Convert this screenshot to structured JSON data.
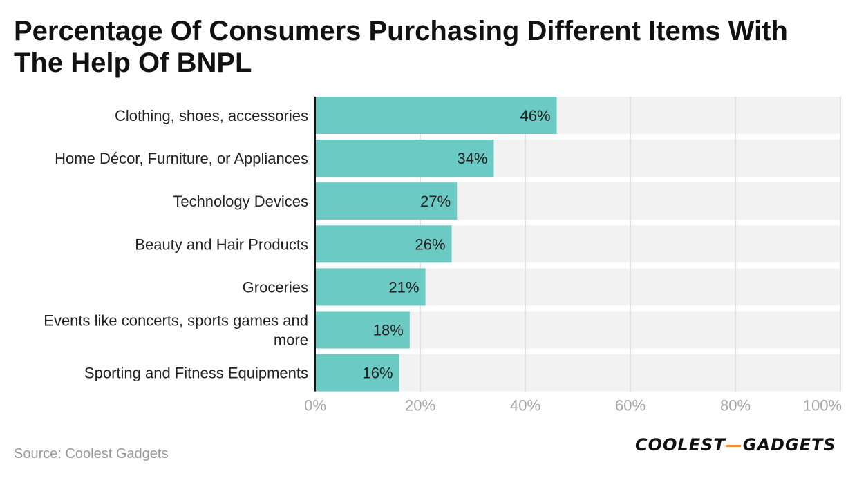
{
  "chart_data": {
    "type": "bar",
    "orientation": "horizontal",
    "title": "Percentage Of Consumers Purchasing Different Items With The Help Of BNPL",
    "categories": [
      "Clothing, shoes, accessories",
      "Home Décor, Furniture, or Appliances",
      "Technology Devices",
      "Beauty and Hair Products",
      "Groceries",
      "Events like concerts, sports games and more",
      "Sporting and Fitness Equipments"
    ],
    "category_lines": [
      [
        "Clothing, shoes, accessories"
      ],
      [
        "Home Décor, Furniture, or Appliances"
      ],
      [
        "Technology Devices"
      ],
      [
        "Beauty and Hair Products"
      ],
      [
        "Groceries"
      ],
      [
        "Events like concerts, sports games and",
        "more"
      ],
      [
        "Sporting and Fitness Equipments"
      ]
    ],
    "values": [
      46,
      34,
      27,
      26,
      21,
      18,
      16
    ],
    "data_labels": [
      "46%",
      "34%",
      "27%",
      "26%",
      "21%",
      "18%",
      "16%"
    ],
    "xlim": [
      0,
      100
    ],
    "x_ticks": [
      0,
      20,
      40,
      60,
      80,
      100
    ],
    "x_tick_labels": [
      "0%",
      "20%",
      "40%",
      "60%",
      "80%",
      "100%"
    ],
    "grid": true,
    "colors": {
      "bar": "#6ccac4",
      "track": "#f2f2f2",
      "grid": "#d9d9d9",
      "axis": "#111111",
      "label": "#222222",
      "tick": "#a6a6a6"
    }
  },
  "footer": {
    "source": "Source: Coolest Gadgets",
    "logo_left": "COOLEST",
    "logo_dash": "—",
    "logo_right": "GADGETS"
  }
}
